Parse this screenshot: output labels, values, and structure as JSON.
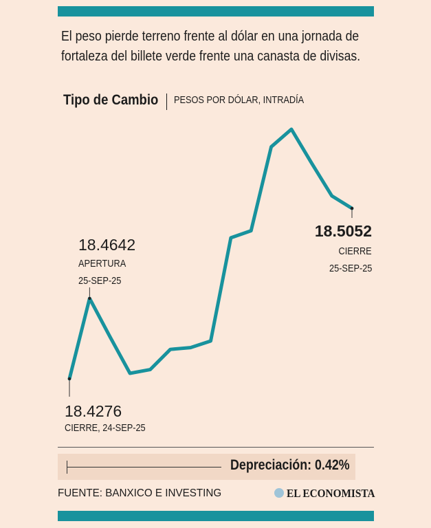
{
  "headline": {
    "line1": "El peso pierde terreno frente al dólar en una jornada de",
    "line2": "fortaleza del billete verde frente una canasta de divisas."
  },
  "title": {
    "main": "Tipo de Cambio",
    "sub": "PESOS POR DÓLAR, INTRADÍA"
  },
  "colors": {
    "line": "#18929d",
    "background": "#fbe9dc",
    "box": "#f1d8c6"
  },
  "chart_data": {
    "type": "line",
    "title": "Tipo de Cambio",
    "subtitle": "PESOS POR DÓLAR, INTRADÍA",
    "x": [
      0,
      1,
      2,
      3,
      4,
      5,
      6,
      7,
      8,
      9,
      10,
      11,
      12,
      13,
      14
    ],
    "values": [
      18.4276,
      18.4642,
      18.4469,
      18.4301,
      18.4318,
      18.441,
      18.4418,
      18.4448,
      18.4918,
      18.495,
      18.5332,
      18.5412,
      18.5258,
      18.5109,
      18.5052
    ],
    "ylim": [
      18.41,
      18.555
    ],
    "annotations": {
      "start": {
        "value": "18.4276",
        "label": "CIERRE, 24-SEP-25"
      },
      "open": {
        "value": "18.4642",
        "label1": "APERTURA",
        "label2": "25-SEP-25"
      },
      "close": {
        "value": "18.5052",
        "label1": "CIERRE",
        "label2": "25-SEP-25"
      }
    }
  },
  "depreciation": "Depreciación: 0.42%",
  "source": "FUENTE: BANXICO E INVESTING",
  "logo": "EL ECONOMISTA"
}
